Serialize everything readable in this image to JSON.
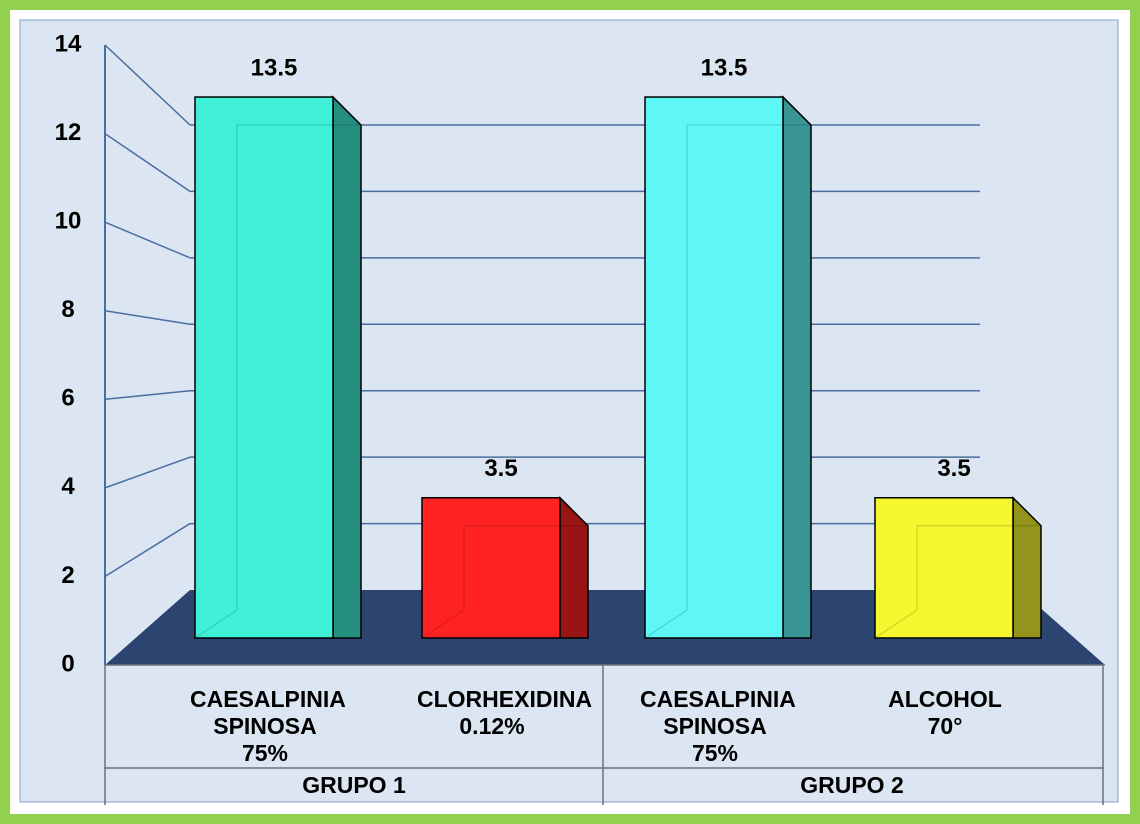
{
  "chart_data": {
    "type": "bar3d",
    "categories": [
      "CAESALPINIA SPINOSA 75%",
      "CLORHEXIDINA 0.12%",
      "CAESALPINIA SPINOSA 75%",
      "ALCOHOL 70°"
    ],
    "groups": [
      "GRUPO 1",
      "GRUPO 2"
    ],
    "values": [
      13.5,
      3.5,
      13.5,
      3.5
    ],
    "colors": [
      "#3ff0d6",
      "#ff2222",
      "#5ff6f6",
      "#f6f62e"
    ],
    "ylim": [
      0,
      14
    ],
    "yticks": [
      0,
      2,
      4,
      6,
      8,
      10,
      12,
      14
    ],
    "grid": true
  }
}
